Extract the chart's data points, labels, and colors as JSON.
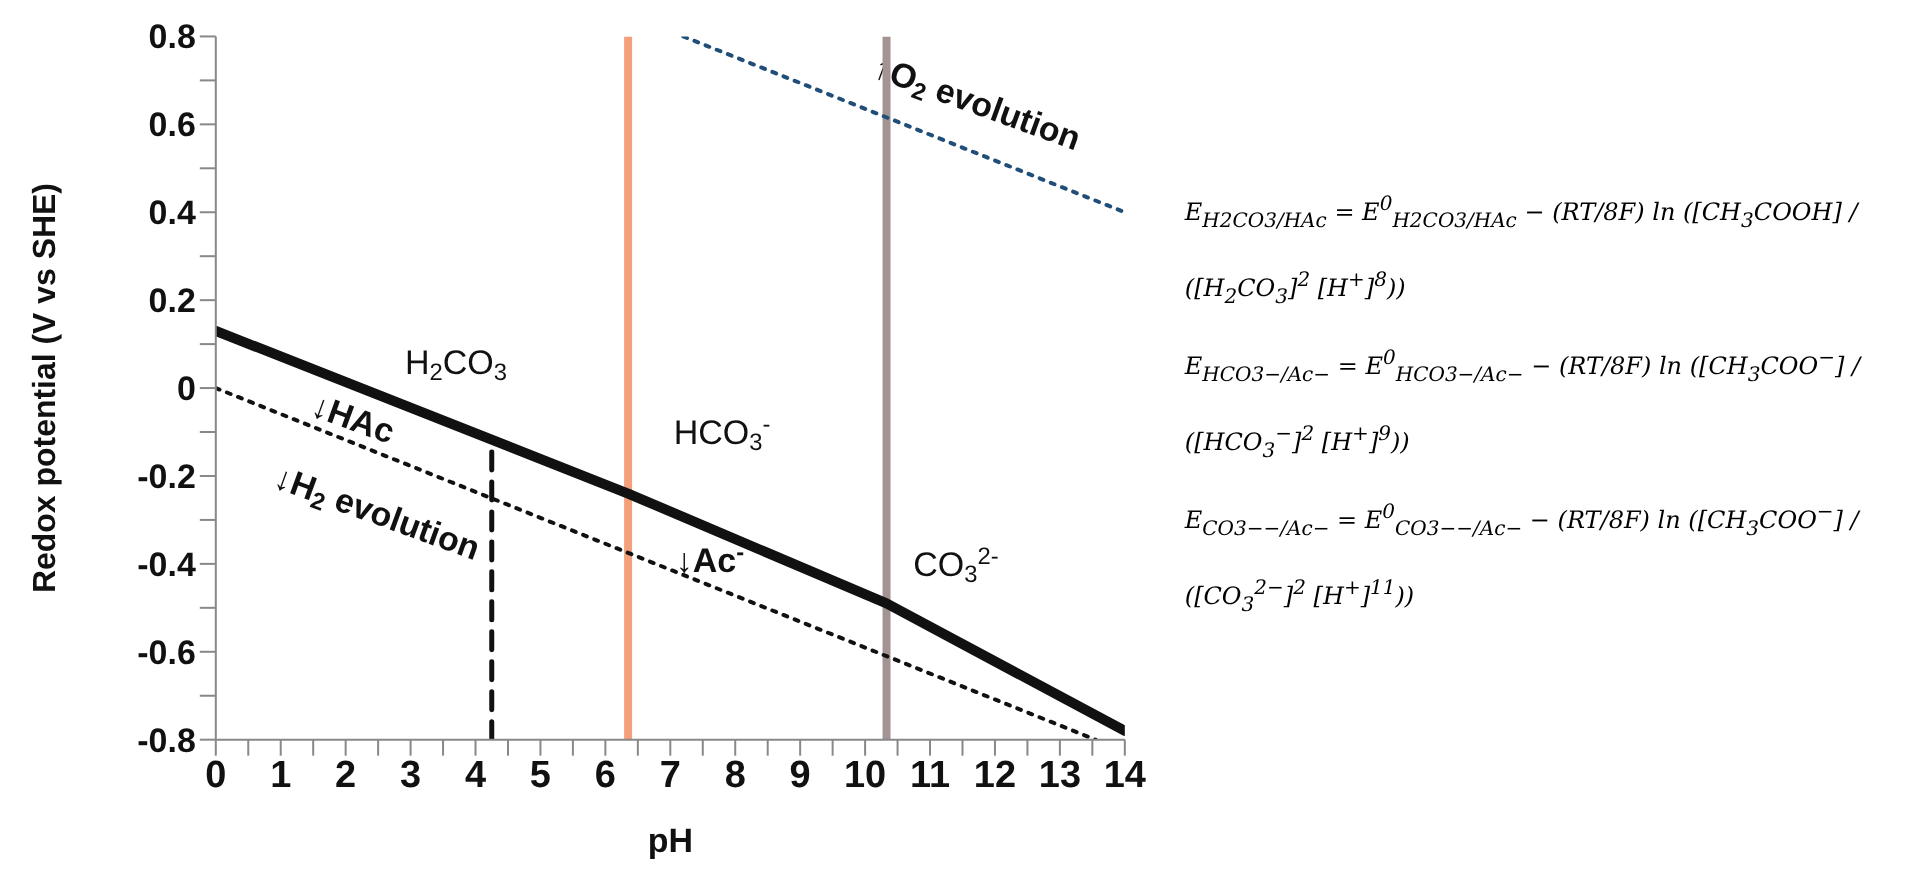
{
  "chart_data": {
    "type": "line",
    "xlabel": "pH",
    "ylabel": "Redox potential (V vs SHE)",
    "xlim": [
      0,
      14
    ],
    "ylim": [
      -0.8,
      0.8
    ],
    "xticks": [
      0,
      {
        "value": 0.5,
        "label": null
      },
      1,
      {
        "value": 1.5,
        "label": null
      },
      2,
      {
        "value": 2.5,
        "label": null
      },
      3,
      {
        "value": 3.5,
        "label": null
      },
      4,
      {
        "value": 4.5,
        "label": null
      },
      5,
      {
        "value": 5.5,
        "label": null
      },
      6,
      {
        "value": 6.5,
        "label": null
      },
      7,
      {
        "value": 7.5,
        "label": null
      },
      8,
      {
        "value": 8.5,
        "label": null
      },
      9,
      {
        "value": 9.5,
        "label": null
      },
      10,
      {
        "value": 10.5,
        "label": null
      },
      11,
      {
        "value": 11.5,
        "label": null
      },
      12,
      {
        "value": 12.5,
        "label": null
      },
      13,
      {
        "value": 13.5,
        "label": null
      },
      14
    ],
    "yticks": [
      -0.8,
      {
        "value": -0.7,
        "label": null
      },
      -0.6,
      {
        "value": -0.5,
        "label": null
      },
      -0.4,
      {
        "value": -0.3,
        "label": null
      },
      -0.2,
      {
        "value": -0.1,
        "label": null
      },
      0,
      {
        "value": 0.1,
        "label": null
      },
      0.2,
      {
        "value": 0.3,
        "label": null
      },
      0.4,
      {
        "value": 0.5,
        "label": null
      },
      0.6,
      {
        "value": 0.7,
        "label": null
      },
      0.8
    ],
    "marker": "none",
    "grid": false,
    "series": [
      {
        "color": "#111111",
        "line_style": "solid",
        "x": [
          0,
          6.35,
          10.33,
          14
        ],
        "values": [
          0.13,
          -0.24,
          -0.49,
          -0.78
        ]
      },
      {
        "color": "#111111",
        "line_style": "dotted",
        "x": [
          0,
          13.55
        ],
        "values": [
          0,
          -0.8
        ]
      },
      {
        "color": "#1f4e79",
        "line_style": "dotted",
        "x": [
          7.2,
          14
        ],
        "values": [
          0.8,
          0.4
        ]
      },
      {
        "color": "#111111",
        "line_style": "dashed",
        "x": [
          4.25,
          4.25
        ],
        "values": [
          -0.8,
          -0.12
        ]
      }
    ],
    "ref_lines": [
      {
        "axis": "x",
        "value": 6.35,
        "color": "#f4a07c"
      },
      {
        "axis": "x",
        "value": 10.33,
        "color": "#a39393"
      }
    ],
    "annotations": [
      "H$_{2}$CO$_{3}$",
      "HCO$_{3}$$^{-}$",
      "CO$_{3}$$^{2-}$",
      "↓HAc",
      "↓H$_{2}$ evolution",
      "↓Ac$^{-}$",
      "↑O$_{2}$ evolution",
      "E$_{H2CO3/HAc}$ = E$^{0}$$_{H2CO3/HAc}$ − (RT/8F) ln ([CH$_{3}$COOH] / ([H$_{2}$CO$_{3}$]$^{2}$ [H$^{+}$]$^{8}$))",
      "E$_{HCO3−/Ac−}$ = E$^{0}$$_{HCO3−/Ac−}$ − (RT/8F) ln ([CH$_{3}$COO$^{−}$] / ([HCO$_{3}$$^{−}$]$^{2}$ [H$^{+}$]$^{9}$))",
      "E$_{CO3−−/Ac−}$ = E$^{0}$$_{CO3−−/Ac−}$ − (RT/8F) ln ([CH$_{3}$COO$^{−}$] / ([CO$_{3}$$^{2−}$]$^{2}$ [H$^{+}$]$^{11}$))"
    ]
  }
}
